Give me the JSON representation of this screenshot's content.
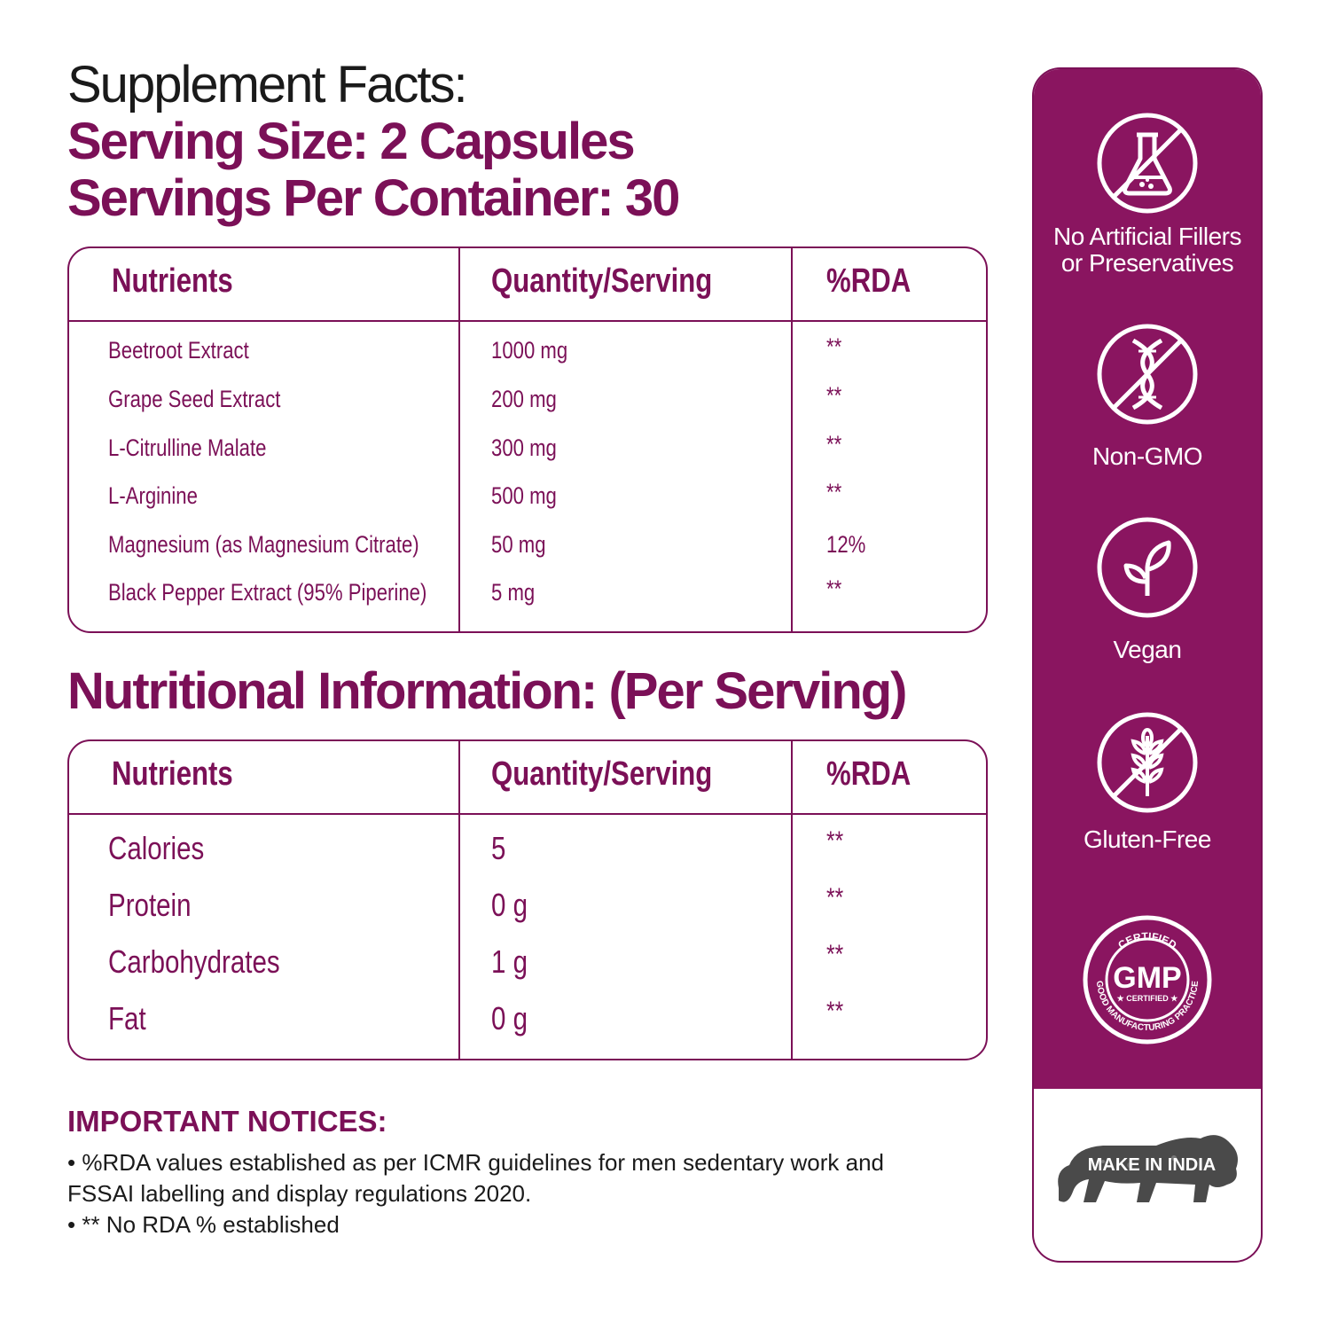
{
  "header": {
    "title": "Supplement Facts:",
    "serving_size": "Serving Size: 2 Capsules",
    "servings_per_container": "Servings Per Container: 30"
  },
  "supplement_table": {
    "columns": [
      "Nutrients",
      "Quantity/Serving",
      "%RDA"
    ],
    "rows": [
      {
        "nutrient": "Beetroot Extract",
        "quantity": "1000 mg",
        "rda": "**"
      },
      {
        "nutrient": "Grape Seed Extract",
        "quantity": "200 mg",
        "rda": "**"
      },
      {
        "nutrient": "L-Citrulline Malate",
        "quantity": "300 mg",
        "rda": "**"
      },
      {
        "nutrient": "L-Arginine",
        "quantity": "500 mg",
        "rda": "**"
      },
      {
        "nutrient": "Magnesium (as Magnesium Citrate)",
        "quantity": "50 mg",
        "rda": "12%"
      },
      {
        "nutrient": "Black Pepper Extract (95% Piperine)",
        "quantity": "5 mg",
        "rda": "**"
      }
    ]
  },
  "nutrition": {
    "title": "Nutritional Information: (Per Serving)",
    "columns": [
      "Nutrients",
      "Quantity/Serving",
      "%RDA"
    ],
    "rows": [
      {
        "nutrient": "Calories",
        "quantity": "5",
        "rda": "**"
      },
      {
        "nutrient": "Protein",
        "quantity": "0 g",
        "rda": "**"
      },
      {
        "nutrient": "Carbohydrates",
        "quantity": "1 g",
        "rda": "**"
      },
      {
        "nutrient": "Fat",
        "quantity": "0 g",
        "rda": "**"
      }
    ]
  },
  "notices": {
    "heading": "IMPORTANT NOTICES:",
    "lines": [
      "• %RDA values established as per ICMR guidelines for men sedentary work and",
      "FSSAI labelling and display regulations 2020.",
      "• ** No RDA % established"
    ]
  },
  "badges": [
    {
      "icon": "no-chemicals-icon",
      "label_line1": "No Artificial Fillers",
      "label_line2": "or Preservatives"
    },
    {
      "icon": "non-gmo-icon",
      "label_line1": "Non-GMO"
    },
    {
      "icon": "vegan-leaf-icon",
      "label_line1": "Vegan"
    },
    {
      "icon": "gluten-free-icon",
      "label_line1": "Gluten-Free"
    },
    {
      "icon": "gmp-certified-seal-icon",
      "seal_text_top": "CERTIFIED",
      "seal_text_main": "GMP",
      "seal_text_sub": "★ CERTIFIED ★",
      "seal_text_ring": "GOOD MANUFACTURING PRACTICE"
    },
    {
      "icon": "make-in-india-lion-icon",
      "logo_text": "MAKE IN INDIA"
    }
  ],
  "colors": {
    "brand": "#7b1057",
    "panel": "#8a1560",
    "text_dark": "#1a1a1a"
  }
}
